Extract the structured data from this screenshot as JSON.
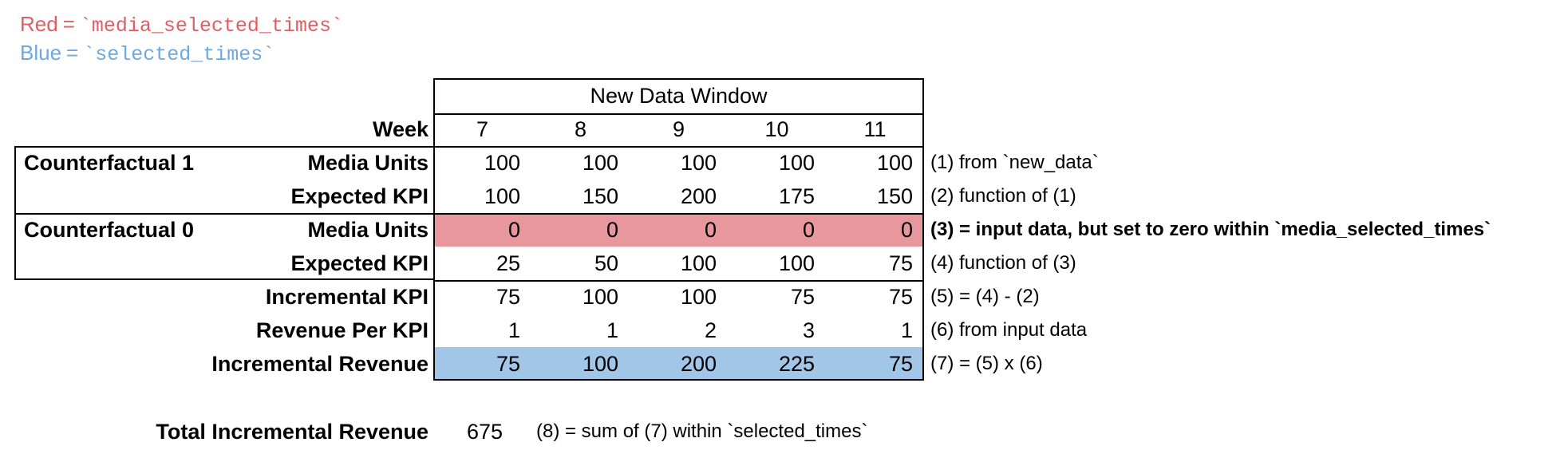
{
  "legend": {
    "red": {
      "word": "Red",
      "eq": "=",
      "code": "`media_selected_times`",
      "color": "#dd5f63"
    },
    "blue": {
      "word": "Blue",
      "eq": "=",
      "code": "`selected_times`",
      "color": "#6fa8dc"
    }
  },
  "colors": {
    "red_highlight": "#e8989d",
    "blue_highlight": "#a2c6e8",
    "border": "#000000",
    "background": "#ffffff"
  },
  "table": {
    "header": "New Data Window",
    "week_label": "Week",
    "weeks": [
      "7",
      "8",
      "9",
      "10",
      "11"
    ],
    "section1_label": "Counterfactual 1",
    "section2_label": "Counterfactual 0",
    "rows": [
      {
        "label": "Media Units",
        "values": [
          "100",
          "100",
          "100",
          "100",
          "100"
        ],
        "annotation": "(1) from `new_data`"
      },
      {
        "label": "Expected KPI",
        "values": [
          "100",
          "150",
          "200",
          "175",
          "150"
        ],
        "annotation": "(2) function of (1)"
      },
      {
        "label": "Media Units",
        "values": [
          "0",
          "0",
          "0",
          "0",
          "0"
        ],
        "annotation": "(3) = input data, but set to zero within `media_selected_times`"
      },
      {
        "label": "Expected KPI",
        "values": [
          "25",
          "50",
          "100",
          "100",
          "75"
        ],
        "annotation": "(4) function of (3)"
      },
      {
        "label": "Incremental KPI",
        "values": [
          "75",
          "100",
          "100",
          "75",
          "75"
        ],
        "annotation": "(5) = (4) - (2)"
      },
      {
        "label": "Revenue Per KPI",
        "values": [
          "1",
          "1",
          "2",
          "3",
          "1"
        ],
        "annotation": "(6) from input data"
      },
      {
        "label": "Incremental Revenue",
        "values": [
          "75",
          "100",
          "200",
          "225",
          "75"
        ],
        "annotation": "(7) = (5) x (6)"
      }
    ]
  },
  "total": {
    "label": "Total Incremental Revenue",
    "value": "675",
    "annotation": "(8) = sum of (7) within `selected_times`"
  }
}
